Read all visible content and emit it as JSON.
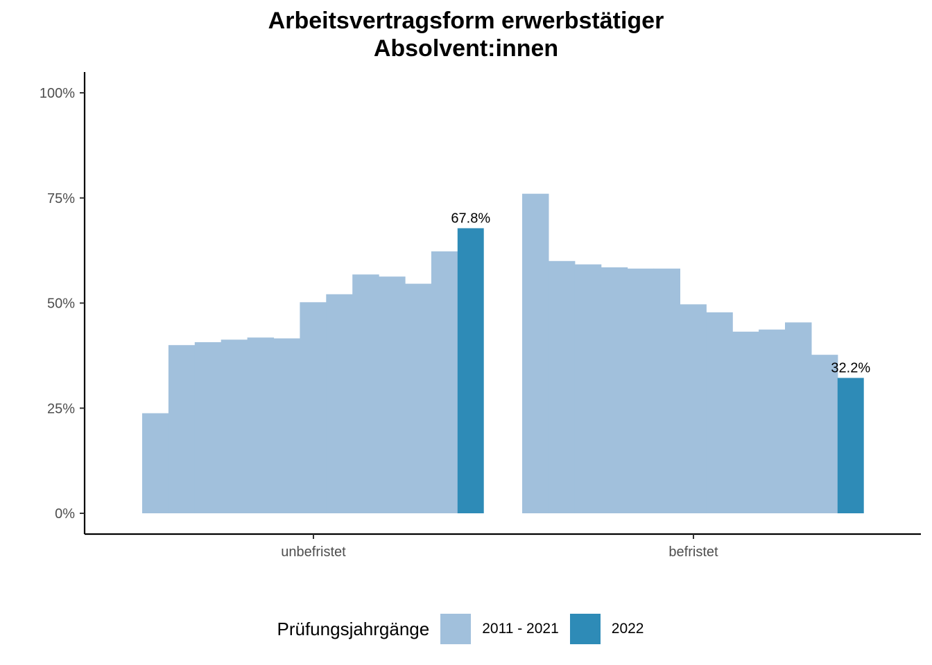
{
  "chart_data": {
    "type": "bar",
    "title_lines": [
      "Arbeitsvertragsform erwerbstätiger",
      "Absolvent:innen"
    ],
    "xlabel": "",
    "ylabel": "",
    "categories": [
      "unbefristet",
      "befristet"
    ],
    "ylim": [
      0,
      1.05
    ],
    "yticks": [
      0,
      0.25,
      0.5,
      0.75,
      1.0
    ],
    "ytick_labels": [
      "0%",
      "25%",
      "50%",
      "75%",
      "100%"
    ],
    "series": [
      {
        "name": "2011 - 2021",
        "color": "#a1c0dc",
        "groups": [
          [
            0.238,
            0.4,
            0.407,
            0.413,
            0.418,
            0.416,
            0.502,
            0.521,
            0.568,
            0.563,
            0.546,
            0.623
          ],
          [
            0.76,
            0.6,
            0.592,
            0.585,
            0.582,
            0.582,
            0.497,
            0.478,
            0.432,
            0.437,
            0.454,
            0.377
          ]
        ]
      },
      {
        "name": "2022",
        "color": "#2e8bb7",
        "values": [
          0.678,
          0.322
        ],
        "labels": [
          "67.8%",
          "32.2%"
        ]
      }
    ],
    "grid": false,
    "legend": {
      "position": "bottom",
      "title": "Prüfungsjahrgänge",
      "entries": [
        "2011 - 2021",
        "2022"
      ]
    }
  }
}
